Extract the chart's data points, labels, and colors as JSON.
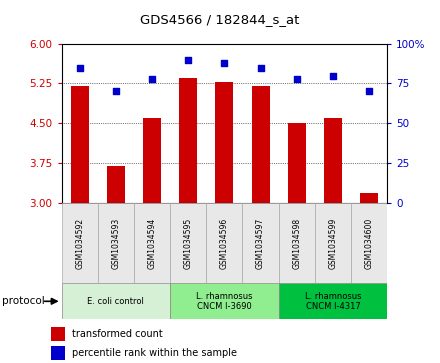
{
  "title": "GDS4566 / 182844_s_at",
  "samples": [
    "GSM1034592",
    "GSM1034593",
    "GSM1034594",
    "GSM1034595",
    "GSM1034596",
    "GSM1034597",
    "GSM1034598",
    "GSM1034599",
    "GSM1034600"
  ],
  "transformed_count": [
    5.2,
    3.7,
    4.6,
    5.35,
    5.28,
    5.2,
    4.5,
    4.6,
    3.2
  ],
  "percentile_rank": [
    85,
    70,
    78,
    90,
    88,
    85,
    78,
    80,
    70
  ],
  "ylim_left": [
    3,
    6
  ],
  "ylim_right": [
    0,
    100
  ],
  "yticks_left": [
    3,
    3.75,
    4.5,
    5.25,
    6
  ],
  "yticks_right": [
    0,
    25,
    50,
    75,
    100
  ],
  "groups": [
    {
      "label": "E. coli control",
      "indices": [
        0,
        1,
        2
      ],
      "color": "#d6f0d6"
    },
    {
      "label": "L. rhamnosus\nCNCM I-3690",
      "indices": [
        3,
        4,
        5
      ],
      "color": "#90ee90"
    },
    {
      "label": "L. rhamnosus\nCNCM I-4317",
      "indices": [
        6,
        7,
        8
      ],
      "color": "#00c040"
    }
  ],
  "bar_color": "#cc0000",
  "dot_color": "#0000cc",
  "bar_width": 0.5,
  "background_color": "#ffffff",
  "axis_color_left": "#cc0000",
  "axis_color_right": "#0000cc",
  "legend_bar_label": "transformed count",
  "legend_dot_label": "percentile rank within the sample",
  "protocol_label": "protocol",
  "right_tick_labels": [
    "0",
    "25",
    "50",
    "75",
    "100%"
  ]
}
